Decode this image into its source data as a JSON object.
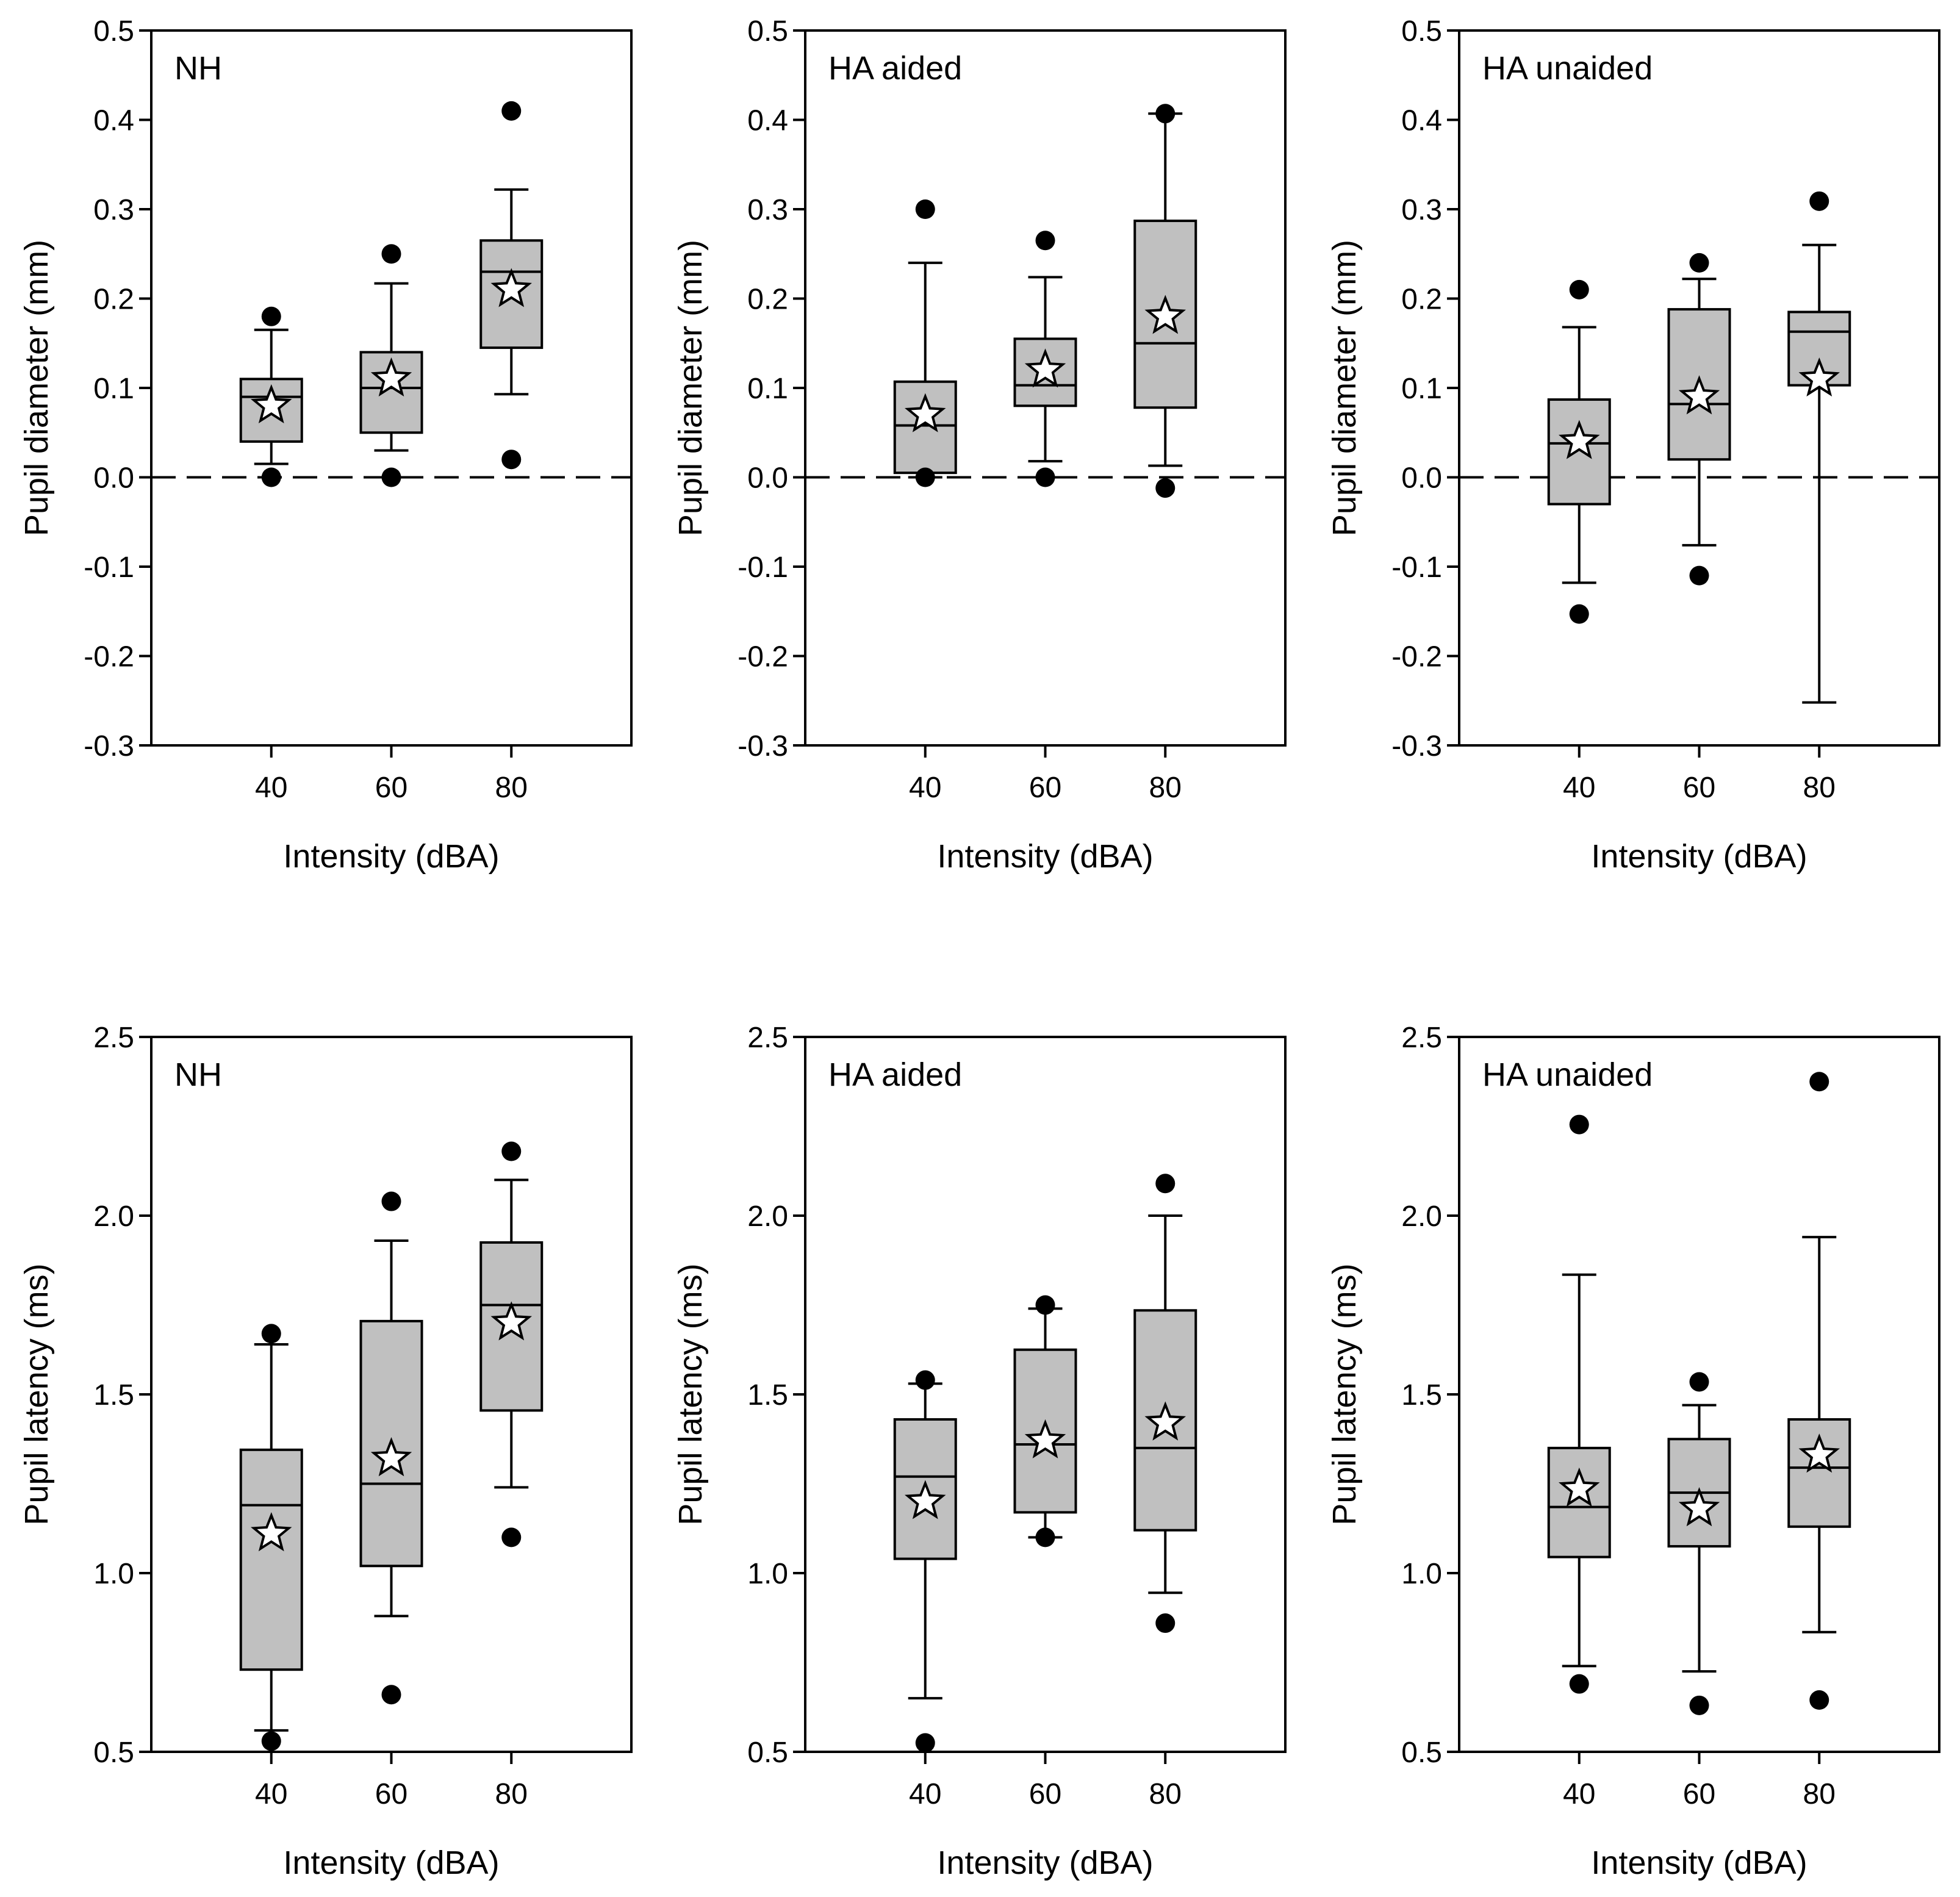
{
  "chart_data": [
    {
      "type": "box",
      "panel_label": "NH",
      "ylabel": "Pupil diameter (mm)",
      "xlabel": "Intensity (dBA)",
      "ylim": [
        -0.3,
        0.5
      ],
      "yticks": [
        "-0.3",
        "-0.2",
        "-0.1",
        "0.0",
        "0.1",
        "0.2",
        "0.3",
        "0.4",
        "0.5"
      ],
      "categories": [
        "40",
        "60",
        "80"
      ],
      "reference_line": 0.0,
      "boxes": [
        {
          "q1": 0.04,
          "median": 0.09,
          "q3": 0.11,
          "whisker_low": 0.015,
          "whisker_high": 0.165,
          "mean": 0.08,
          "outliers": [
            0.18,
            0.0
          ]
        },
        {
          "q1": 0.05,
          "median": 0.1,
          "q3": 0.14,
          "whisker_low": 0.03,
          "whisker_high": 0.217,
          "mean": 0.11,
          "outliers": [
            0.25,
            0.0
          ]
        },
        {
          "q1": 0.145,
          "median": 0.23,
          "q3": 0.265,
          "whisker_low": 0.093,
          "whisker_high": 0.322,
          "mean": 0.21,
          "outliers": [
            0.41,
            0.02
          ]
        }
      ]
    },
    {
      "type": "box",
      "panel_label": "HA aided",
      "ylabel": "Pupil diameter (mm)",
      "xlabel": "Intensity (dBA)",
      "ylim": [
        -0.3,
        0.5
      ],
      "yticks": [
        "-0.3",
        "-0.2",
        "-0.1",
        "0.0",
        "0.1",
        "0.2",
        "0.3",
        "0.4",
        "0.5"
      ],
      "categories": [
        "40",
        "60",
        "80"
      ],
      "reference_line": 0.0,
      "boxes": [
        {
          "q1": 0.005,
          "median": 0.058,
          "q3": 0.107,
          "whisker_low": 0.0,
          "whisker_high": 0.24,
          "mean": 0.07,
          "outliers": [
            0.3,
            0.0
          ]
        },
        {
          "q1": 0.08,
          "median": 0.103,
          "q3": 0.155,
          "whisker_low": 0.018,
          "whisker_high": 0.224,
          "mean": 0.12,
          "outliers": [
            0.265,
            0.0
          ]
        },
        {
          "q1": 0.078,
          "median": 0.15,
          "q3": 0.287,
          "whisker_low": 0.013,
          "whisker_high": 0.407,
          "mean": 0.18,
          "outliers": [
            0.407,
            -0.012
          ]
        }
      ]
    },
    {
      "type": "box",
      "panel_label": "HA unaided",
      "ylabel": "Pupil diameter (mm)",
      "xlabel": "Intensity (dBA)",
      "ylim": [
        -0.3,
        0.5
      ],
      "yticks": [
        "-0.3",
        "-0.2",
        "-0.1",
        "0.0",
        "0.1",
        "0.2",
        "0.3",
        "0.4",
        "0.5"
      ],
      "categories": [
        "40",
        "60",
        "80"
      ],
      "reference_line": 0.0,
      "boxes": [
        {
          "q1": -0.03,
          "median": 0.038,
          "q3": 0.087,
          "whisker_low": -0.118,
          "whisker_high": 0.168,
          "mean": 0.04,
          "outliers": [
            0.21,
            -0.153
          ]
        },
        {
          "q1": 0.02,
          "median": 0.082,
          "q3": 0.188,
          "whisker_low": -0.076,
          "whisker_high": 0.222,
          "mean": 0.09,
          "outliers": [
            0.24,
            -0.11
          ]
        },
        {
          "q1": 0.103,
          "median": 0.163,
          "q3": 0.185,
          "whisker_low": -0.252,
          "whisker_high": 0.26,
          "mean": 0.11,
          "outliers": [
            0.309
          ]
        }
      ]
    },
    {
      "type": "box",
      "panel_label": "NH",
      "ylabel": "Pupil latency (ms)",
      "xlabel": "Intensity (dBA)",
      "ylim": [
        0.5,
        2.5
      ],
      "yticks": [
        "0.5",
        "1.0",
        "1.5",
        "2.0",
        "2.5"
      ],
      "categories": [
        "40",
        "60",
        "80"
      ],
      "boxes": [
        {
          "q1": 0.73,
          "median": 1.19,
          "q3": 1.345,
          "whisker_low": 0.56,
          "whisker_high": 1.64,
          "mean": 1.11,
          "outliers": [
            1.67,
            0.53
          ]
        },
        {
          "q1": 1.02,
          "median": 1.25,
          "q3": 1.705,
          "whisker_low": 0.88,
          "whisker_high": 1.93,
          "mean": 1.32,
          "outliers": [
            2.04,
            0.66
          ]
        },
        {
          "q1": 1.455,
          "median": 1.75,
          "q3": 1.925,
          "whisker_low": 1.24,
          "whisker_high": 2.1,
          "mean": 1.7,
          "outliers": [
            2.18,
            1.1
          ]
        }
      ]
    },
    {
      "type": "box",
      "panel_label": "HA aided",
      "ylabel": "Pupil latency (ms)",
      "xlabel": "Intensity (dBA)",
      "ylim": [
        0.5,
        2.5
      ],
      "yticks": [
        "0.5",
        "1.0",
        "1.5",
        "2.0",
        "2.5"
      ],
      "categories": [
        "40",
        "60",
        "80"
      ],
      "boxes": [
        {
          "q1": 1.04,
          "median": 1.27,
          "q3": 1.43,
          "whisker_low": 0.65,
          "whisker_high": 1.53,
          "mean": 1.2,
          "outliers": [
            1.54,
            0.525
          ]
        },
        {
          "q1": 1.17,
          "median": 1.36,
          "q3": 1.625,
          "whisker_low": 1.1,
          "whisker_high": 1.74,
          "mean": 1.37,
          "outliers": [
            1.75,
            1.1
          ]
        },
        {
          "q1": 1.12,
          "median": 1.35,
          "q3": 1.735,
          "whisker_low": 0.945,
          "whisker_high": 2.0,
          "mean": 1.42,
          "outliers": [
            2.09,
            0.86
          ]
        }
      ]
    },
    {
      "type": "box",
      "panel_label": "HA unaided",
      "ylabel": "Pupil latency (ms)",
      "xlabel": "Intensity (dBA)",
      "ylim": [
        0.5,
        2.5
      ],
      "yticks": [
        "0.5",
        "1.0",
        "1.5",
        "2.0",
        "2.5"
      ],
      "categories": [
        "40",
        "60",
        "80"
      ],
      "boxes": [
        {
          "q1": 1.045,
          "median": 1.185,
          "q3": 1.35,
          "whisker_low": 0.74,
          "whisker_high": 1.835,
          "mean": 1.235,
          "outliers": [
            2.255,
            0.69
          ]
        },
        {
          "q1": 1.075,
          "median": 1.225,
          "q3": 1.375,
          "whisker_low": 0.725,
          "whisker_high": 1.47,
          "mean": 1.18,
          "outliers": [
            1.535,
            0.63
          ]
        },
        {
          "q1": 1.13,
          "median": 1.295,
          "q3": 1.43,
          "whisker_low": 0.835,
          "whisker_high": 1.94,
          "mean": 1.33,
          "outliers": [
            2.375,
            0.645
          ]
        }
      ]
    }
  ]
}
